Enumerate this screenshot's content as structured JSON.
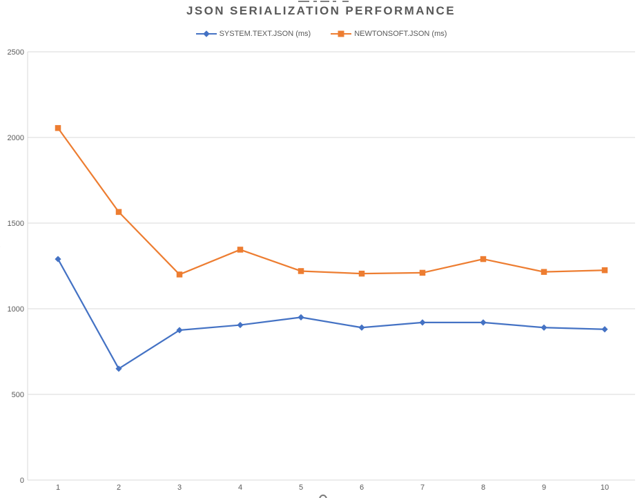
{
  "title": "JSON SERIALIZATION PERFORMANCE",
  "legend": {
    "items": [
      {
        "label": "SYSTEM.TEXT.JSON (ms)",
        "color": "#4472C4",
        "marker": "diamond"
      },
      {
        "label": "NEWTONSOFT.JSON (ms)",
        "color": "#ED7D31",
        "marker": "square"
      }
    ]
  },
  "cropped_text": {
    "left_axis_remnant": ")",
    "top_remnant": "",
    "bottom_remnant": ""
  },
  "chart_data": {
    "type": "line",
    "title": "JSON SERIALIZATION PERFORMANCE",
    "categories": [
      "1",
      "2",
      "3",
      "4",
      "5",
      "6",
      "7",
      "8",
      "9",
      "10"
    ],
    "series": [
      {
        "name": "SYSTEM.TEXT.JSON (ms)",
        "color": "#4472C4",
        "marker": "diamond",
        "values": [
          1290,
          650,
          875,
          905,
          950,
          890,
          920,
          920,
          890,
          880
        ]
      },
      {
        "name": "NEWTONSOFT.JSON (ms)",
        "color": "#ED7D31",
        "marker": "square",
        "values": [
          2055,
          1565,
          1200,
          1345,
          1220,
          1205,
          1210,
          1290,
          1215,
          1225
        ]
      }
    ],
    "xlabel": "",
    "ylabel": "",
    "ylim": [
      0,
      2500
    ],
    "yticks": [
      0,
      500,
      1000,
      1500,
      2000,
      2500
    ],
    "grid": true,
    "legend_position": "top",
    "colors": {
      "gridline": "#D9D9D9",
      "axis_line": "#D9D9D9",
      "text": "#595959"
    }
  }
}
